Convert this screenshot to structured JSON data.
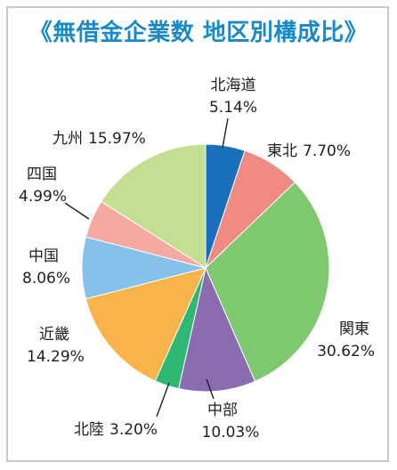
{
  "chart_data": {
    "type": "pie",
    "title": "《無借金企業数 地区別構成比》",
    "start_angle_deg": 0,
    "direction": "clockwise",
    "slices": [
      {
        "name": "北海道",
        "value": 5.14,
        "label": "5.14%",
        "color": "#1a6fbd"
      },
      {
        "name": "東北",
        "value": 7.7,
        "label": "7.70%",
        "color": "#f08b84"
      },
      {
        "name": "関東",
        "value": 30.62,
        "label": "30.62%",
        "color": "#7ec870"
      },
      {
        "name": "中部",
        "value": 10.03,
        "label": "10.03%",
        "color": "#8b6cb0"
      },
      {
        "name": "北陸",
        "value": 3.2,
        "label": "3.20%",
        "color": "#2fb873"
      },
      {
        "name": "近畿",
        "value": 14.29,
        "label": "14.29%",
        "color": "#f8b34a"
      },
      {
        "name": "中国",
        "value": 8.06,
        "label": "8.06%",
        "color": "#85c1ea"
      },
      {
        "name": "四国",
        "value": 4.99,
        "label": "4.99%",
        "color": "#f6a8a2"
      },
      {
        "name": "九州",
        "value": 15.97,
        "label": "15.97%",
        "color": "#c3df91"
      }
    ]
  }
}
